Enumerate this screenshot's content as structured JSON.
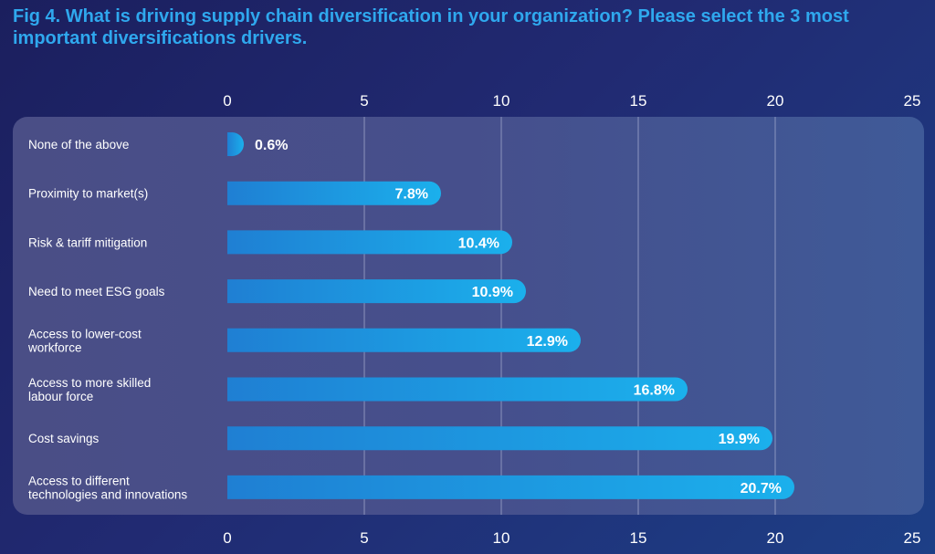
{
  "title": "Fig 4. What is driving supply chain diversification in your organization? Please select the 3 most important diversifications drivers.",
  "colors": {
    "title": "#2fa8ee",
    "bar_start": "#1f7fd3",
    "bar_end": "#1bb0ec",
    "tick_text": "#ffffff",
    "grid": "#c8cce6"
  },
  "chart_data": {
    "type": "bar",
    "orientation": "horizontal",
    "title": "Fig 4. What is driving supply chain diversification in your organization? Please select the 3 most important diversifications drivers.",
    "xlabel": "",
    "ylabel": "",
    "xlim": [
      0,
      25
    ],
    "xticks": [
      0,
      5,
      10,
      15,
      20,
      25
    ],
    "grid": true,
    "categories": [
      [
        "None of the above"
      ],
      [
        "Proximity to market(s)"
      ],
      [
        "Risk & tariff mitigation"
      ],
      [
        "Need to meet ESG goals"
      ],
      [
        "Access to lower-cost",
        "workforce"
      ],
      [
        "Access to more skilled",
        "labour force"
      ],
      [
        "Cost savings"
      ],
      [
        "Access to different",
        "technologies and innovations"
      ]
    ],
    "values": [
      0.6,
      7.8,
      10.4,
      10.9,
      12.9,
      16.8,
      19.9,
      20.7
    ],
    "value_labels": [
      "0.6%",
      "7.8%",
      "10.4%",
      "10.9%",
      "12.9%",
      "16.8%",
      "19.9%",
      "20.7%"
    ]
  }
}
